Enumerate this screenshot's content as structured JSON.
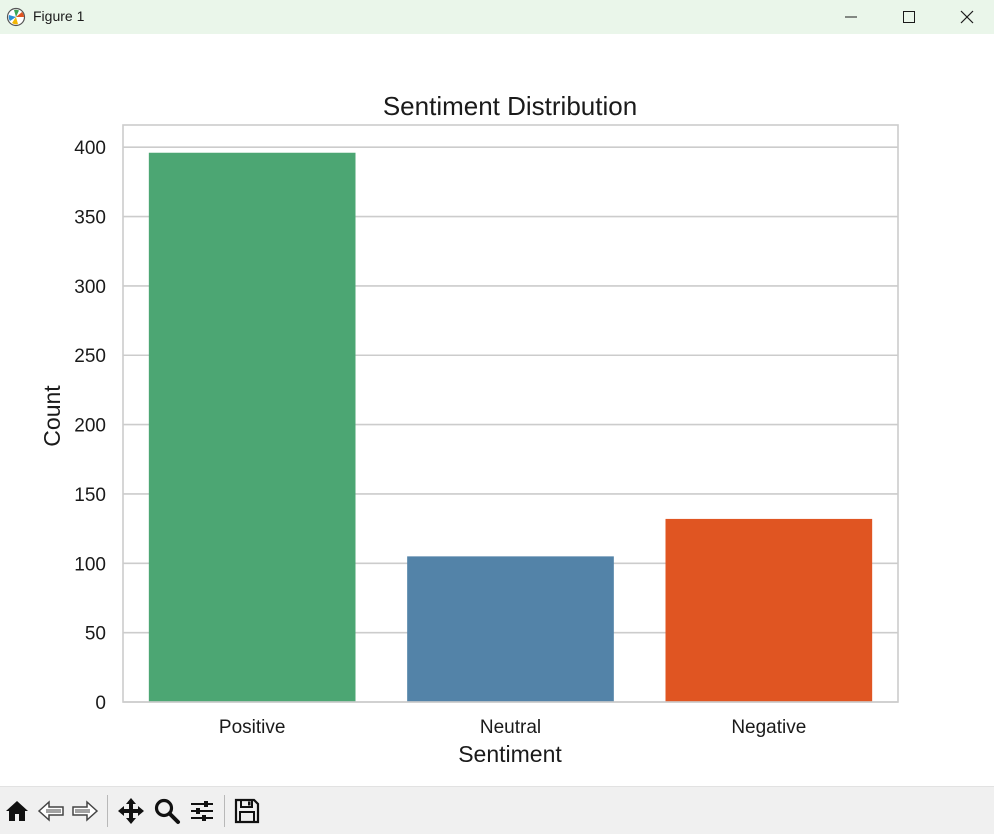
{
  "window": {
    "title": "Figure 1",
    "controls": [
      "minimize",
      "maximize",
      "close"
    ]
  },
  "toolbar": {
    "buttons": [
      {
        "name": "home-icon",
        "tooltip": "Reset original view"
      },
      {
        "name": "back-icon",
        "tooltip": "Back to previous view"
      },
      {
        "name": "forward-icon",
        "tooltip": "Forward to next view"
      },
      {
        "name": "pan-icon",
        "tooltip": "Pan axes"
      },
      {
        "name": "zoom-icon",
        "tooltip": "Zoom to rectangle"
      },
      {
        "name": "configure-subplots-icon",
        "tooltip": "Configure subplots"
      },
      {
        "name": "save-icon",
        "tooltip": "Save the figure"
      }
    ]
  },
  "chart_data": {
    "type": "bar",
    "title": "Sentiment Distribution",
    "xlabel": "Sentiment",
    "ylabel": "Count",
    "categories": [
      "Positive",
      "Neutral",
      "Negative"
    ],
    "values": [
      396,
      105,
      132
    ],
    "colors": [
      "#4ca673",
      "#5383a8",
      "#e05522"
    ],
    "ylim": [
      0,
      416
    ],
    "yticks": [
      0,
      50,
      100,
      150,
      200,
      250,
      300,
      350,
      400
    ],
    "grid": true,
    "grid_axis": "y",
    "legend": "none"
  }
}
